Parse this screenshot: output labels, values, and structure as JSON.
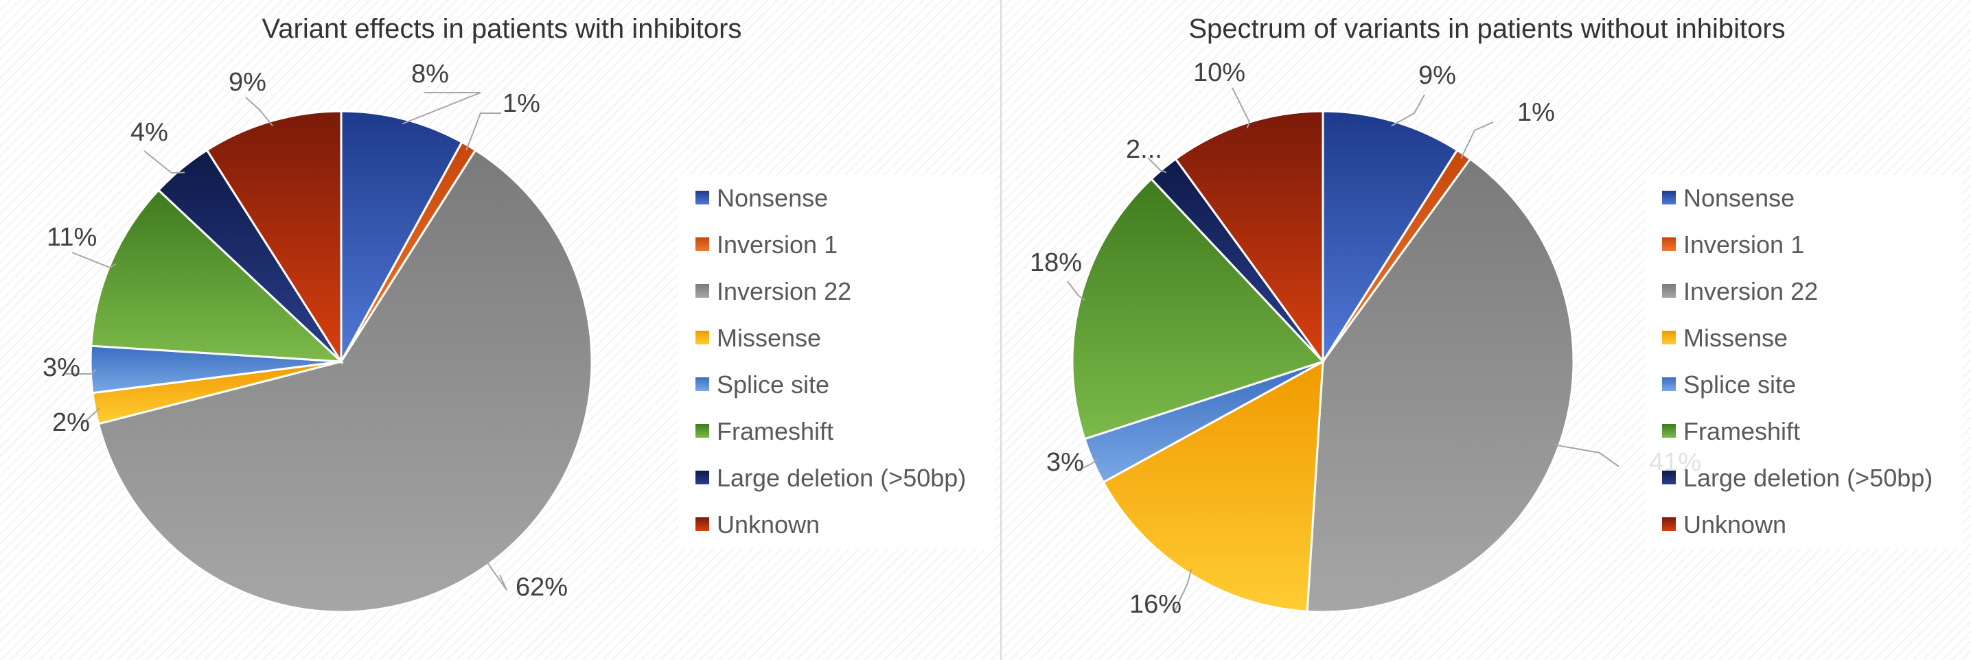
{
  "chart_data": [
    {
      "type": "pie",
      "title": "Variant effects in patients with inhibitors",
      "categories": [
        "Nonsense",
        "Inversion 1",
        "Inversion 22",
        "Missense",
        "Splice site",
        "Frameshift",
        "Large deletion (>50bp)",
        "Unknown"
      ],
      "values": [
        8,
        1,
        62,
        2,
        3,
        11,
        4,
        9
      ],
      "labels": [
        "8%",
        "1%",
        "62%",
        "2%",
        "3%",
        "11%",
        "4%",
        "9%"
      ],
      "legend_position": "right"
    },
    {
      "type": "pie",
      "title": "Spectrum of variants in patients without inhibitors",
      "categories": [
        "Nonsense",
        "Inversion 1",
        "Inversion 22",
        "Missense",
        "Splice site",
        "Frameshift",
        "Large deletion (>50bp)",
        "Unknown"
      ],
      "values": [
        9,
        1,
        41,
        16,
        3,
        18,
        2,
        10
      ],
      "labels": [
        "9%",
        "1%",
        "41%",
        "16%",
        "3%",
        "18%",
        "2...",
        "10%"
      ],
      "legend_position": "right"
    }
  ],
  "colors": {
    "Nonsense": [
      "#5079d6",
      "#1e3a8c"
    ],
    "Inversion 1": [
      "#f07a30",
      "#c7460a"
    ],
    "Inversion 22": [
      "#a6a6a6",
      "#7a7a7a"
    ],
    "Missense": [
      "#ffcc33",
      "#f09a00"
    ],
    "Splice site": [
      "#7aa8e6",
      "#3a6ec0"
    ],
    "Frameshift": [
      "#7cba4a",
      "#3f7a1e"
    ],
    "Large deletion (>50bp)": [
      "#2a3f8a",
      "#0e1a4a"
    ],
    "Unknown": [
      "#d8400e",
      "#7a1a0a"
    ]
  }
}
